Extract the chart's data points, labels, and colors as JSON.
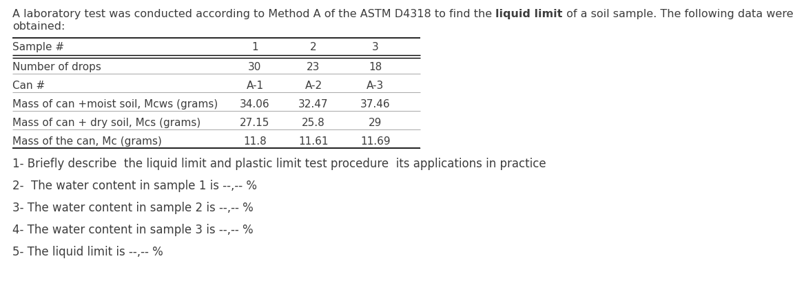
{
  "intro_text_part1": "A laboratory test was conducted according to Method A of the ASTM D4318 to find the ",
  "intro_bold": "liquid limit",
  "intro_text_part2": " of a soil sample. The following data were",
  "intro_line2": "obtained:",
  "table_headers": [
    "Sample #",
    "1",
    "2",
    "3"
  ],
  "table_rows": [
    [
      "Number of drops",
      "30",
      "23",
      "18"
    ],
    [
      "Can #",
      "A-1",
      "A-2",
      "A-3"
    ],
    [
      "Mass of can +moist soil, Mcws (grams)",
      "34.06",
      "32.47",
      "37.46"
    ],
    [
      "Mass of can + dry soil, Mcs (grams)",
      "27.15",
      "25.8",
      "29"
    ],
    [
      "Mass of the can, Mc (grams)",
      "11.8",
      "11.61",
      "11.69"
    ]
  ],
  "questions": [
    "1- Briefly describe  the liquid limit and plastic limit test procedure  its applications in practice",
    "2-  The water content in sample 1 is --,-- %",
    "3- The water content in sample 2 is --,-- %",
    "4- The water content in sample 3 is --,-- %",
    "5- The liquid limit is --,-- %"
  ],
  "text_color": "#3d3d3d",
  "bg_color": "#ffffff",
  "font_size": 11.5,
  "table_font_size": 11.0,
  "q_font_size": 12.0
}
